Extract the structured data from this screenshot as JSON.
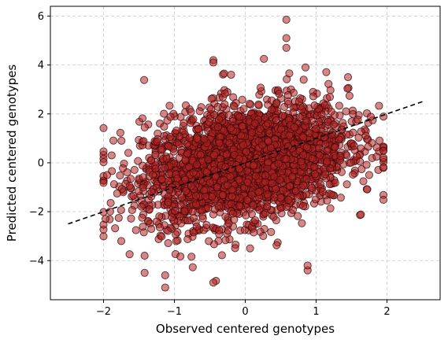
{
  "chart_data": {
    "type": "scatter",
    "title": "",
    "xlabel": "Observed centered genotypes",
    "ylabel": "Predicted centered genotypes",
    "xlim": [
      -2.75,
      2.75
    ],
    "ylim": [
      -5.6,
      6.4
    ],
    "xticks": [
      -2,
      -1,
      0,
      1,
      2
    ],
    "yticks": [
      -4,
      -2,
      0,
      2,
      4,
      6
    ],
    "grid": true,
    "point_color": "#b22222",
    "point_edge_color": "#3a0a0a",
    "point_alpha": 0.55,
    "reference_line": {
      "style": "dashed",
      "color": "#000000",
      "x": [
        -2.5,
        2.5
      ],
      "y": [
        -2.5,
        2.5
      ]
    },
    "point_cloud": {
      "approx_count": 3000,
      "x_range": [
        -2.0,
        1.95
      ],
      "y_range": [
        -5.1,
        5.85
      ],
      "x_center": 0.0,
      "y_center": 0.0,
      "correlation": "moderate positive"
    },
    "notable_points": [
      {
        "x": 0.58,
        "y": 5.85
      },
      {
        "x": 0.58,
        "y": 5.1
      },
      {
        "x": 0.58,
        "y": 4.7
      },
      {
        "x": -0.45,
        "y": 4.2
      },
      {
        "x": -0.45,
        "y": 4.1
      },
      {
        "x": -0.2,
        "y": 3.6
      },
      {
        "x": 0.85,
        "y": 3.9
      },
      {
        "x": 1.45,
        "y": 3.5
      },
      {
        "x": -1.13,
        "y": -5.1
      },
      {
        "x": -1.13,
        "y": -4.6
      },
      {
        "x": -0.45,
        "y": -4.9
      },
      {
        "x": -1.42,
        "y": -4.5
      },
      {
        "x": -1.42,
        "y": -3.8
      },
      {
        "x": 0.88,
        "y": -4.4
      },
      {
        "x": 0.88,
        "y": -4.2
      },
      {
        "x": -1.75,
        "y": -3.2
      },
      {
        "x": -1.95,
        "y": -0.5
      },
      {
        "x": 1.95,
        "y": 0.2
      }
    ]
  }
}
